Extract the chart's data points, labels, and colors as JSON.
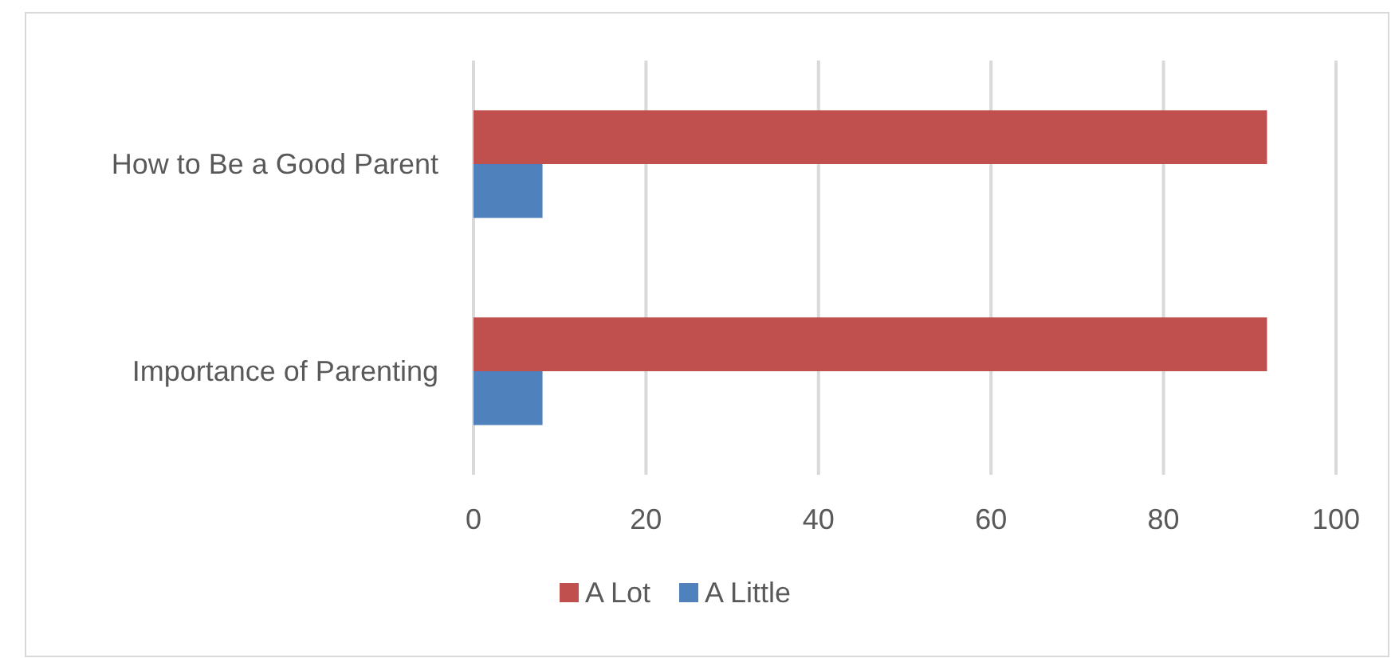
{
  "chart_data": {
    "type": "bar",
    "orientation": "horizontal",
    "categories": [
      "How to Be a Good Parent",
      "Importance of Parenting"
    ],
    "series": [
      {
        "name": "A Lot",
        "color": "#c0504d",
        "values": [
          92,
          92
        ]
      },
      {
        "name": "A Little",
        "color": "#4f81bd",
        "values": [
          8,
          8
        ]
      }
    ],
    "xlim": [
      0,
      100
    ],
    "xticks": [
      0,
      20,
      40,
      60,
      80,
      100
    ],
    "grid": "x",
    "legend": "bottom"
  }
}
